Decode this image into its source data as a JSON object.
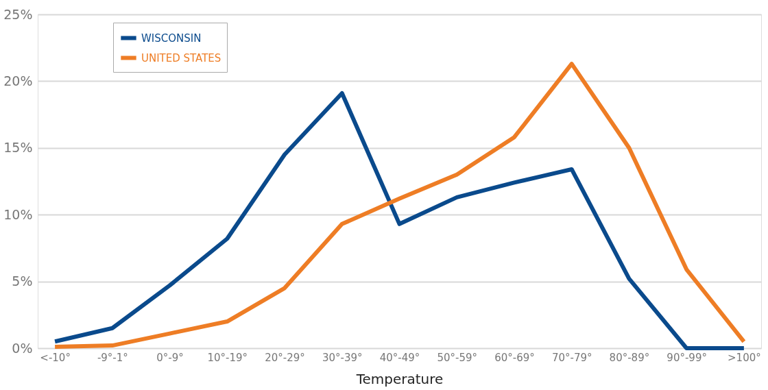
{
  "chart_data": {
    "type": "line",
    "xlabel": "Temperature",
    "categories": [
      "<-10°",
      "-9°-1°",
      "0°-9°",
      "10°-19°",
      "20°-29°",
      "30°-39°",
      "40°-49°",
      "50°-59°",
      "60°-69°",
      "70°-79°",
      "80°-89°",
      "90°-99°",
      ">100°"
    ],
    "series": [
      {
        "name": "WISCONSIN",
        "color": "#0a4a8c",
        "values": [
          0.5,
          1.5,
          4.7,
          8.2,
          14.5,
          19.1,
          9.3,
          11.3,
          12.4,
          13.4,
          5.2,
          0,
          0
        ]
      },
      {
        "name": "UNITED STATES",
        "color": "#ee7d25",
        "values": [
          0.1,
          0.2,
          1.1,
          2.0,
          4.5,
          9.3,
          11.2,
          13.0,
          15.8,
          21.3,
          15.0,
          5.9,
          0.5
        ]
      }
    ],
    "ylim": [
      0,
      25
    ],
    "yticks": [
      {
        "value": 0,
        "label": "0%"
      },
      {
        "value": 5,
        "label": "5%"
      },
      {
        "value": 10,
        "label": "10%"
      },
      {
        "value": 15,
        "label": "15%"
      },
      {
        "value": 20,
        "label": "20%"
      },
      {
        "value": 25,
        "label": "25%"
      }
    ],
    "grid": "y",
    "legend": "top left",
    "marker": "none",
    "line_style": "solid"
  }
}
